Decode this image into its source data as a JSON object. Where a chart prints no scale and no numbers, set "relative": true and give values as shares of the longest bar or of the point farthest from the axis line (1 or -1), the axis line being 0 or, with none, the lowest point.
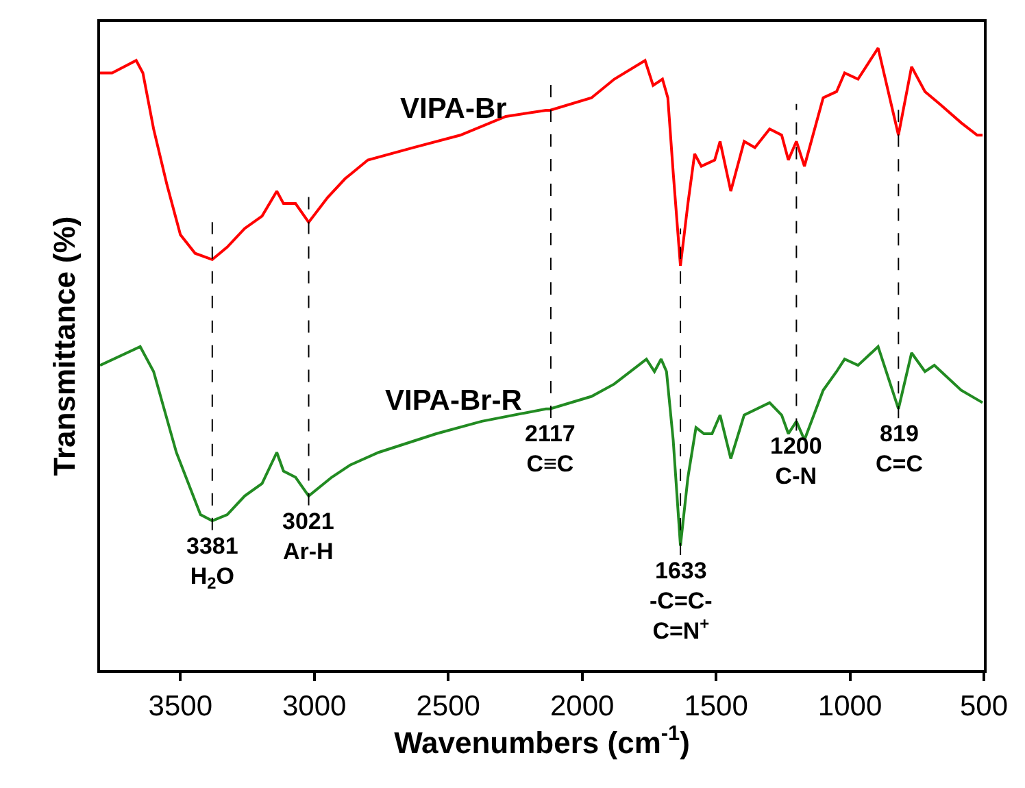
{
  "chart_data": {
    "type": "line",
    "relative": true,
    "xlabel": "Wavenumbers (cm$^{-1}$)",
    "ylabel": "Transmittance (%)",
    "xlim": [
      3800,
      500
    ],
    "xticks": [
      3500,
      3000,
      2500,
      2000,
      1500,
      1000,
      500
    ],
    "legend": false,
    "marker": "none",
    "line_style": "solid",
    "series": [
      {
        "name": "VIPA-Br",
        "color": "#ff0000",
        "x": [
          3800,
          3755,
          3665,
          3640,
          3600,
          3550,
          3500,
          3445,
          3381,
          3325,
          3260,
          3195,
          3140,
          3115,
          3070,
          3021,
          2950,
          2885,
          2800,
          2630,
          2455,
          2285,
          2135,
          2120,
          1965,
          1880,
          1765,
          1735,
          1700,
          1680,
          1660,
          1633,
          1605,
          1580,
          1555,
          1505,
          1485,
          1445,
          1395,
          1355,
          1300,
          1255,
          1230,
          1200,
          1170,
          1100,
          1050,
          1020,
          970,
          895,
          819,
          770,
          720,
          665,
          585,
          525,
          505
        ],
        "values": [
          0.96,
          0.96,
          0.98,
          0.96,
          0.87,
          0.78,
          0.7,
          0.67,
          0.66,
          0.68,
          0.71,
          0.73,
          0.77,
          0.75,
          0.75,
          0.72,
          0.76,
          0.79,
          0.82,
          0.84,
          0.86,
          0.89,
          0.9,
          0.9,
          0.92,
          0.95,
          0.98,
          0.94,
          0.95,
          0.92,
          0.8,
          0.65,
          0.75,
          0.83,
          0.81,
          0.82,
          0.85,
          0.77,
          0.85,
          0.84,
          0.87,
          0.86,
          0.82,
          0.85,
          0.81,
          0.92,
          0.93,
          0.96,
          0.95,
          1.0,
          0.86,
          0.97,
          0.93,
          0.91,
          0.88,
          0.86,
          0.86
        ]
      },
      {
        "name": "VIPA-Br-R",
        "color": "#228b22",
        "x": [
          3800,
          3650,
          3600,
          3515,
          3425,
          3381,
          3325,
          3260,
          3195,
          3140,
          3115,
          3070,
          3021,
          2935,
          2865,
          2760,
          2545,
          2375,
          2135,
          2120,
          1965,
          1880,
          1760,
          1730,
          1705,
          1685,
          1660,
          1633,
          1605,
          1575,
          1545,
          1515,
          1485,
          1445,
          1395,
          1300,
          1255,
          1230,
          1200,
          1170,
          1100,
          1050,
          1020,
          970,
          895,
          819,
          770,
          720,
          685,
          585,
          505
        ],
        "values": [
          0.49,
          0.52,
          0.48,
          0.35,
          0.25,
          0.24,
          0.25,
          0.28,
          0.3,
          0.35,
          0.32,
          0.31,
          0.28,
          0.31,
          0.33,
          0.35,
          0.38,
          0.4,
          0.42,
          0.42,
          0.44,
          0.46,
          0.5,
          0.48,
          0.5,
          0.48,
          0.37,
          0.2,
          0.31,
          0.39,
          0.38,
          0.38,
          0.41,
          0.34,
          0.41,
          0.43,
          0.41,
          0.38,
          0.4,
          0.37,
          0.45,
          0.48,
          0.5,
          0.49,
          0.52,
          0.42,
          0.51,
          0.48,
          0.49,
          0.45,
          0.43
        ]
      }
    ],
    "ref_lines": [
      {
        "axis": "x",
        "value": 3381,
        "label": "3381\nH$_{2}$O",
        "line_style": "dashed",
        "color": "#000000"
      },
      {
        "axis": "x",
        "value": 3021,
        "label": "3021\nAr-H",
        "line_style": "dashed",
        "color": "#000000"
      },
      {
        "axis": "x",
        "value": 2117,
        "label": "2117\nC≡C",
        "line_style": "dashed",
        "color": "#000000"
      },
      {
        "axis": "x",
        "value": 1633,
        "label": "1633\n-C=C-\nC=N$^{+}$",
        "line_style": "dashed",
        "color": "#000000"
      },
      {
        "axis": "x",
        "value": 1200,
        "label": "1200\nC-N",
        "line_style": "dashed",
        "color": "#000000"
      },
      {
        "axis": "x",
        "value": 819,
        "label": "819\nC=C",
        "line_style": "dashed",
        "color": "#000000"
      }
    ]
  }
}
